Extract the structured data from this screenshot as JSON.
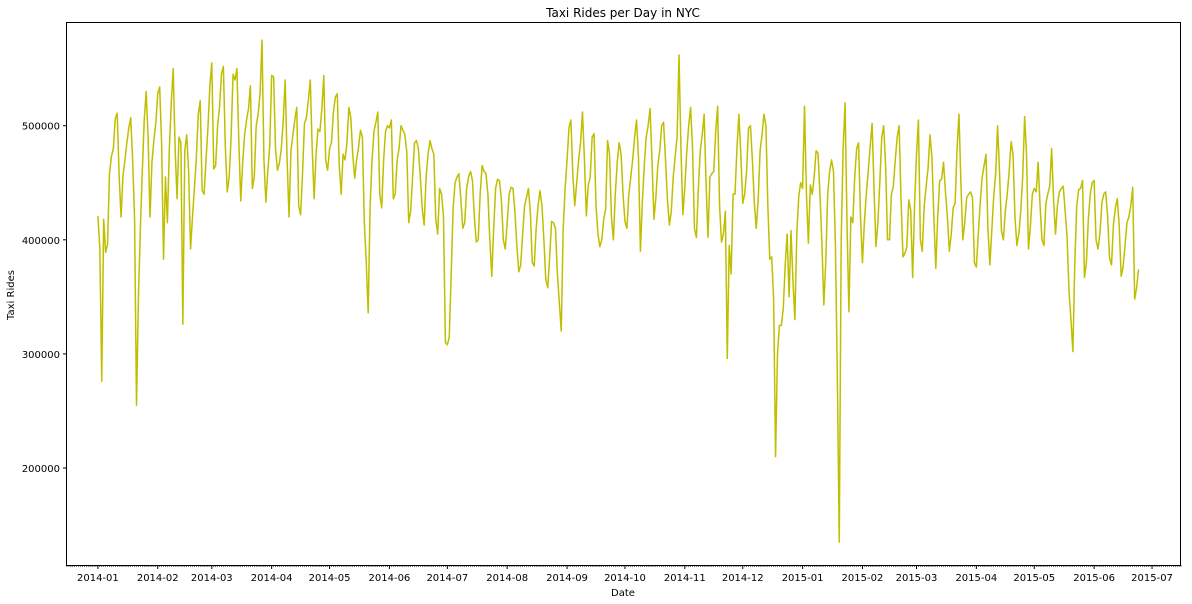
{
  "chart_data": {
    "type": "line",
    "title": "Taxi Rides per Day in NYC",
    "xlabel": "Date",
    "ylabel": "Taxi Rides",
    "line_color": "#bfbf00",
    "grid": false,
    "legend": "none",
    "x_range": [
      "2013-12-16",
      "2015-07-16"
    ],
    "ylim": [
      115000,
      590000
    ],
    "x_ticks": [
      "2014-01",
      "2014-02",
      "2014-03",
      "2014-04",
      "2014-05",
      "2014-06",
      "2014-07",
      "2014-08",
      "2014-09",
      "2014-10",
      "2014-11",
      "2014-12",
      "2015-01",
      "2015-02",
      "2015-03",
      "2015-04",
      "2015-05",
      "2015-06",
      "2015-07"
    ],
    "y_ticks": [
      200000,
      300000,
      400000,
      500000
    ],
    "series": [
      {
        "start_date": "2014-01-01",
        "values": [
          421000,
          393000,
          276000,
          418000,
          389000,
          396000,
          458000,
          473000,
          480000,
          506000,
          511000,
          456000,
          420000,
          456000,
          470000,
          485000,
          498000,
          507000,
          470000,
          418000,
          255000,
          350000,
          410000,
          460000,
          505000,
          530000,
          490000,
          420000,
          468000,
          487000,
          502000,
          528000,
          534000,
          485000,
          383000,
          455000,
          415000,
          480000,
          520000,
          550000,
          480000,
          436000,
          490000,
          485000,
          326000,
          478000,
          492000,
          460000,
          392000,
          420000,
          445000,
          472000,
          510000,
          522000,
          443000,
          440000,
          470000,
          498000,
          535000,
          555000,
          462000,
          465000,
          500000,
          516000,
          545000,
          552000,
          482000,
          442000,
          455000,
          490000,
          545000,
          540000,
          550000,
          486000,
          434000,
          468000,
          492000,
          505000,
          515000,
          535000,
          445000,
          455000,
          500000,
          510000,
          528000,
          575000,
          470000,
          433000,
          460000,
          482000,
          544000,
          543000,
          480000,
          461000,
          467000,
          480000,
          505000,
          540000,
          470000,
          420000,
          478000,
          492000,
          505000,
          516000,
          430000,
          422000,
          458000,
          502000,
          507000,
          522000,
          540000,
          480000,
          436000,
          475000,
          497000,
          495000,
          515000,
          544000,
          470000,
          461000,
          480000,
          485000,
          512000,
          525000,
          528000,
          465000,
          440000,
          475000,
          470000,
          485000,
          516000,
          507000,
          475000,
          454000,
          470000,
          481000,
          496000,
          490000,
          415000,
          380000,
          336000,
          430000,
          470000,
          495000,
          503000,
          512000,
          440000,
          428000,
          470000,
          495000,
          500000,
          498000,
          505000,
          436000,
          440000,
          470000,
          480000,
          500000,
          496000,
          492000,
          477000,
          415000,
          425000,
          455000,
          485000,
          487000,
          480000,
          455000,
          427000,
          413000,
          455000,
          475000,
          487000,
          480000,
          475000,
          418000,
          405000,
          445000,
          440000,
          420000,
          310000,
          308000,
          315000,
          370000,
          428000,
          450000,
          455000,
          458000,
          435000,
          410000,
          415000,
          445000,
          455000,
          460000,
          452000,
          420000,
          398000,
          400000,
          440000,
          465000,
          460000,
          458000,
          440000,
          400000,
          368000,
          410000,
          445000,
          453000,
          452000,
          435000,
          400000,
          392000,
          415000,
          440000,
          446000,
          445000,
          425000,
          395000,
          372000,
          378000,
          405000,
          430000,
          437000,
          445000,
          424000,
          380000,
          377000,
          410000,
          430000,
          443000,
          430000,
          400000,
          365000,
          358000,
          385000,
          416000,
          415000,
          410000,
          370000,
          345000,
          320000,
          410000,
          445000,
          470000,
          498000,
          505000,
          456000,
          430000,
          450000,
          470000,
          485000,
          512000,
          470000,
          421000,
          448000,
          455000,
          490000,
          493000,
          430000,
          405000,
          394000,
          400000,
          418000,
          427000,
          487000,
          475000,
          420000,
          400000,
          440000,
          468000,
          485000,
          475000,
          440000,
          416000,
          410000,
          440000,
          455000,
          470000,
          490000,
          505000,
          472000,
          390000,
          433000,
          465000,
          490000,
          500000,
          515000,
          470000,
          418000,
          437000,
          465000,
          478000,
          500000,
          503000,
          470000,
          435000,
          413000,
          425000,
          455000,
          473000,
          490000,
          562000,
          480000,
          422000,
          446000,
          477000,
          500000,
          516000,
          480000,
          410000,
          402000,
          445000,
          478000,
          492000,
          510000,
          450000,
          402000,
          455000,
          458000,
          460000,
          495000,
          517000,
          430000,
          398000,
          405000,
          425000,
          296000,
          395000,
          370000,
          440000,
          440000,
          480000,
          510000,
          475000,
          432000,
          440000,
          460000,
          498000,
          500000,
          470000,
          433000,
          410000,
          435000,
          478000,
          492000,
          510000,
          500000,
          430000,
          383000,
          385000,
          348000,
          210000,
          300000,
          325000,
          325000,
          340000,
          378000,
          405000,
          350000,
          408000,
          365000,
          330000,
          405000,
          438000,
          450000,
          445000,
          517000,
          440000,
          397000,
          448000,
          440000,
          455000,
          478000,
          476000,
          440000,
          398000,
          343000,
          380000,
          440000,
          460000,
          470000,
          460000,
          396000,
          280000,
          135000,
          400000,
          480000,
          520000,
          415000,
          337000,
          420000,
          415000,
          455000,
          480000,
          485000,
          420000,
          380000,
          415000,
          440000,
          460000,
          482000,
          502000,
          445000,
          394000,
          415000,
          450000,
          490000,
          500000,
          465000,
          400000,
          400000,
          440000,
          447000,
          470000,
          490000,
          500000,
          435000,
          385000,
          388000,
          394000,
          435000,
          426000,
          367000,
          430000,
          475000,
          505000,
          400000,
          390000,
          430000,
          447000,
          463000,
          492000,
          472000,
          420000,
          375000,
          420000,
          452000,
          453000,
          468000,
          442000,
          420000,
          390000,
          405000,
          428000,
          432000,
          480000,
          510000,
          450000,
          400000,
          415000,
          437000,
          440000,
          442000,
          437000,
          380000,
          376000,
          405000,
          432000,
          455000,
          465000,
          475000,
          410000,
          378000,
          408000,
          438000,
          458000,
          500000,
          460000,
          408000,
          400000,
          425000,
          440000,
          460000,
          486000,
          475000,
          420000,
          395000,
          405000,
          425000,
          455000,
          508000,
          475000,
          392000,
          412000,
          440000,
          445000,
          442000,
          468000,
          430000,
          400000,
          395000,
          432000,
          440000,
          447000,
          480000,
          435000,
          405000,
          430000,
          442000,
          445000,
          447000,
          425000,
          402000,
          355000,
          330000,
          302000,
          380000,
          430000,
          444000,
          445000,
          452000,
          367000,
          380000,
          418000,
          440000,
          450000,
          452000,
          400000,
          392000,
          405000,
          432000,
          440000,
          442000,
          420000,
          384000,
          378000,
          413000,
          428000,
          436000,
          412000,
          368000,
          376000,
          395000,
          415000,
          420000,
          430000,
          446000,
          348000,
          358000,
          374000
        ]
      }
    ]
  }
}
